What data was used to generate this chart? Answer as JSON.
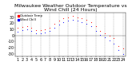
{
  "title": "Milwaukee Weather Outdoor Temperature vs Wind Chill (24 Hours)",
  "legend_temp": "Outdoor Temp",
  "legend_wc": "Wind Chill",
  "hours": [
    1,
    2,
    3,
    4,
    5,
    6,
    7,
    8,
    9,
    10,
    11,
    12,
    13,
    14,
    15,
    16,
    17,
    18,
    19,
    20,
    21,
    22,
    23,
    24
  ],
  "temp": [
    12,
    14,
    15,
    13,
    9,
    9,
    10,
    13,
    19,
    24,
    28,
    30,
    32,
    30,
    28,
    26,
    22,
    15,
    8,
    4,
    0,
    -4,
    -18,
    -22
  ],
  "wind_chill": [
    6,
    9,
    10,
    8,
    4,
    4,
    5,
    8,
    13,
    18,
    22,
    24,
    26,
    24,
    22,
    19,
    15,
    8,
    1,
    -3,
    -8,
    -14,
    -24,
    -30
  ],
  "temp_color": "#ff0000",
  "wind_chill_color": "#0000ff",
  "bg_color": "#ffffff",
  "grid_color": "#888888",
  "ylim": [
    -35,
    38
  ],
  "ytick_vals": [
    30,
    20,
    10,
    0,
    -10,
    -20,
    -30
  ],
  "ytick_labels": [
    "30",
    "20",
    "10",
    "0",
    "-10",
    "-20",
    "-30"
  ],
  "xtick_vals": [
    1,
    2,
    3,
    4,
    5,
    6,
    7,
    8,
    9,
    10,
    11,
    12,
    13,
    14,
    15,
    16,
    17,
    18,
    19,
    20,
    21,
    22,
    23,
    24
  ],
  "grid_x_positions": [
    2,
    4,
    6,
    8,
    10,
    12,
    14,
    16,
    18,
    20,
    22,
    24
  ],
  "title_fontsize": 4.5,
  "tick_fontsize": 3.5,
  "dot_size": 2.5,
  "dpi": 100
}
